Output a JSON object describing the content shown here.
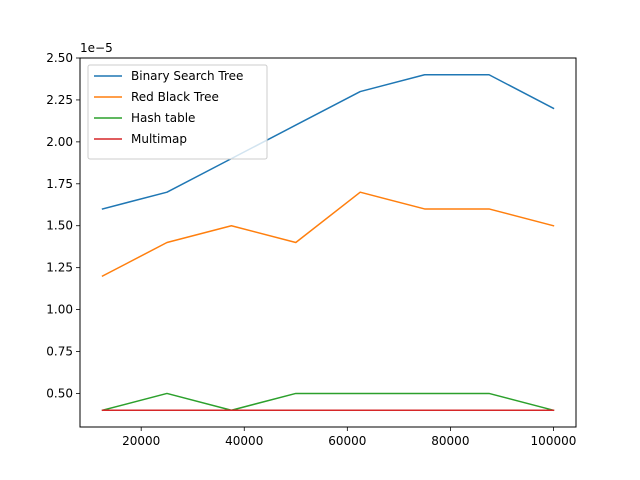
{
  "chart_data": {
    "type": "line",
    "title": "",
    "xlabel": "",
    "ylabel": "",
    "x": [
      12500,
      25000,
      37500,
      50000,
      62500,
      75000,
      87500,
      100000
    ],
    "series": [
      {
        "name": "Binary Search Tree",
        "color": "#1f77b4",
        "values": [
          1.6e-05,
          1.7e-05,
          1.9e-05,
          2.1e-05,
          2.3e-05,
          2.4e-05,
          2.4e-05,
          2.2e-05
        ]
      },
      {
        "name": "Red Black Tree",
        "color": "#ff7f0e",
        "values": [
          1.2e-05,
          1.4e-05,
          1.5e-05,
          1.4e-05,
          1.7e-05,
          1.6e-05,
          1.6e-05,
          1.5e-05
        ]
      },
      {
        "name": "Hash table",
        "color": "#2ca02c",
        "values": [
          4e-06,
          5e-06,
          4e-06,
          5e-06,
          5e-06,
          5e-06,
          5e-06,
          4e-06
        ]
      },
      {
        "name": "Multimap",
        "color": "#d62728",
        "values": [
          4e-06,
          4e-06,
          4e-06,
          4e-06,
          4e-06,
          4e-06,
          4e-06,
          4e-06
        ]
      }
    ],
    "xlim": [
      8125,
      104375
    ],
    "ylim": [
      3e-06,
      2.5e-05
    ],
    "xticks": [
      20000,
      40000,
      60000,
      80000,
      100000
    ],
    "xtick_labels": [
      "20000",
      "40000",
      "60000",
      "80000",
      "100000"
    ],
    "yticks": [
      5e-06,
      7.5e-06,
      1e-05,
      1.25e-05,
      1.5e-05,
      1.75e-05,
      2e-05,
      2.25e-05,
      2.5e-05
    ],
    "ytick_labels": [
      "0.50",
      "0.75",
      "1.00",
      "1.25",
      "1.50",
      "1.75",
      "2.00",
      "2.25",
      "2.50"
    ],
    "y_offset_label": "1e−5",
    "grid": false,
    "legend_position": "upper-left"
  }
}
